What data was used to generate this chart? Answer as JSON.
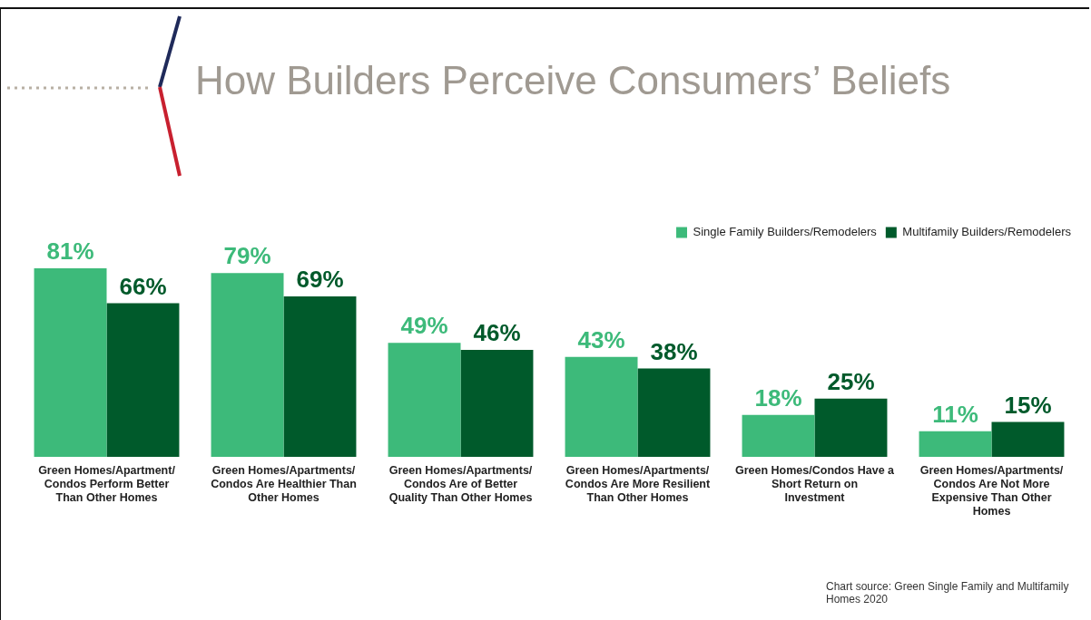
{
  "chart_data": {
    "type": "bar",
    "title": "How Builders Perceive Consumers’ Beliefs",
    "categories": [
      "Green Homes/Apartment/Condos Perform Better Than Other Homes",
      "Green Homes/Apartments/Condos Are Healthier Than Other Homes",
      "Green Homes/Apartments/Condos Are of Better Quality Than Other Homes",
      "Green Homes/Apartments/Condos Are More Resilient Than Other Homes",
      "Green Homes/Condos Have a Short Return on Investment",
      "Green Homes/Apartments/Condos Are Not More Expensive Than Other Homes"
    ],
    "series": [
      {
        "name": "Single Family Builders/Remodelers",
        "color": "#3dba7a",
        "values": [
          81,
          79,
          49,
          43,
          18,
          11
        ],
        "value_labels": [
          "81%",
          "79%",
          "49%",
          "43%",
          "18%",
          "11%"
        ]
      },
      {
        "name": "Multifamily Builders/Remodelers",
        "color": "#005a2b",
        "values": [
          66,
          69,
          46,
          38,
          25,
          15
        ],
        "value_labels": [
          "66%",
          "69%",
          "46%",
          "38%",
          "25%",
          "15%"
        ]
      }
    ],
    "legend": "top right",
    "grid": false,
    "tick_labels": "x",
    "annotations": [
      "Chart source: Green Single Family and Multifamily Homes 2020"
    ]
  }
}
